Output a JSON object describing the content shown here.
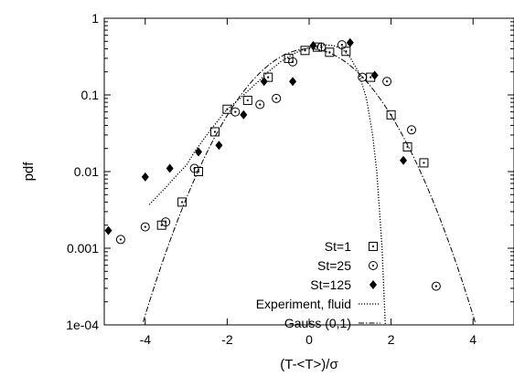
{
  "chart_data": {
    "type": "scatter",
    "xlabel": "(T-<T>)/σ",
    "ylabel": "pdf",
    "xlim": [
      -5,
      5
    ],
    "ylim": [
      0.0001,
      1
    ],
    "y_scale": "log",
    "grid": false,
    "legend_position": "bottom-right",
    "x_ticks": [
      {
        "value": -4,
        "label": "-4"
      },
      {
        "value": -2,
        "label": "-2"
      },
      {
        "value": 0,
        "label": "0"
      },
      {
        "value": 2,
        "label": "2"
      },
      {
        "value": 4,
        "label": "4"
      }
    ],
    "y_ticks": [
      {
        "value": 1,
        "label": "1"
      },
      {
        "value": 0.1,
        "label": "0.1"
      },
      {
        "value": 0.01,
        "label": "0.01"
      },
      {
        "value": 0.001,
        "label": "0.001"
      },
      {
        "value": 0.0001,
        "label": "1e-04"
      }
    ],
    "series": [
      {
        "name": "St=1",
        "marker": "square-dot",
        "points": [
          [
            -3.6,
            0.002
          ],
          [
            -3.1,
            0.004
          ],
          [
            -2.7,
            0.01
          ],
          [
            -2.3,
            0.033
          ],
          [
            -2.0,
            0.065
          ],
          [
            -1.5,
            0.085
          ],
          [
            -1.0,
            0.17
          ],
          [
            -0.5,
            0.3
          ],
          [
            -0.1,
            0.38
          ],
          [
            0.2,
            0.42
          ],
          [
            0.5,
            0.36
          ],
          [
            0.9,
            0.37
          ],
          [
            1.5,
            0.17
          ],
          [
            2.0,
            0.055
          ],
          [
            2.4,
            0.021
          ],
          [
            2.8,
            0.013
          ]
        ]
      },
      {
        "name": "St=25",
        "marker": "circle-dot",
        "points": [
          [
            -4.6,
            0.0013
          ],
          [
            -4.0,
            0.0019
          ],
          [
            -3.5,
            0.0022
          ],
          [
            -2.8,
            0.011
          ],
          [
            -1.8,
            0.06
          ],
          [
            -1.2,
            0.075
          ],
          [
            -0.8,
            0.09
          ],
          [
            -0.4,
            0.27
          ],
          [
            0.3,
            0.42
          ],
          [
            0.8,
            0.45
          ],
          [
            1.3,
            0.17
          ],
          [
            1.9,
            0.15
          ],
          [
            2.5,
            0.035
          ],
          [
            3.1,
            0.00032
          ]
        ]
      },
      {
        "name": "St=125",
        "marker": "diamond",
        "points": [
          [
            -4.9,
            0.0017
          ],
          [
            -4.0,
            0.0085
          ],
          [
            -3.4,
            0.011
          ],
          [
            -2.7,
            0.018
          ],
          [
            -2.2,
            0.022
          ],
          [
            -1.6,
            0.055
          ],
          [
            -1.1,
            0.15
          ],
          [
            -0.4,
            0.15
          ],
          [
            0.1,
            0.44
          ],
          [
            1.0,
            0.48
          ],
          [
            1.6,
            0.18
          ],
          [
            2.3,
            0.014
          ]
        ]
      },
      {
        "name": "Experiment, fluid",
        "style": "dotted-line",
        "points": [
          [
            -3.9,
            0.0037
          ],
          [
            -3.7,
            0.0048
          ],
          [
            -3.5,
            0.0062
          ],
          [
            -3.3,
            0.0082
          ],
          [
            -3.0,
            0.012
          ],
          [
            -2.8,
            0.018
          ],
          [
            -2.5,
            0.03
          ],
          [
            -2.2,
            0.048
          ],
          [
            -2.0,
            0.065
          ],
          [
            -1.8,
            0.08
          ],
          [
            -1.6,
            0.1
          ],
          [
            -1.3,
            0.14
          ],
          [
            -1.0,
            0.2
          ],
          [
            -0.7,
            0.27
          ],
          [
            -0.4,
            0.34
          ],
          [
            -0.1,
            0.4
          ],
          [
            0.2,
            0.44
          ],
          [
            0.4,
            0.45
          ],
          [
            0.6,
            0.44
          ],
          [
            0.8,
            0.4
          ],
          [
            1.0,
            0.31
          ],
          [
            1.2,
            0.2
          ],
          [
            1.4,
            0.09
          ],
          [
            1.55,
            0.03
          ],
          [
            1.65,
            0.01
          ],
          [
            1.72,
            0.003
          ],
          [
            1.78,
            0.001
          ],
          [
            1.82,
            0.0003
          ],
          [
            1.86,
            0.0001
          ]
        ]
      },
      {
        "name": "Gauss (0,1)",
        "style": "dash-dot-line",
        "function": "gaussian",
        "mean": 0,
        "sigma": 1
      }
    ]
  }
}
